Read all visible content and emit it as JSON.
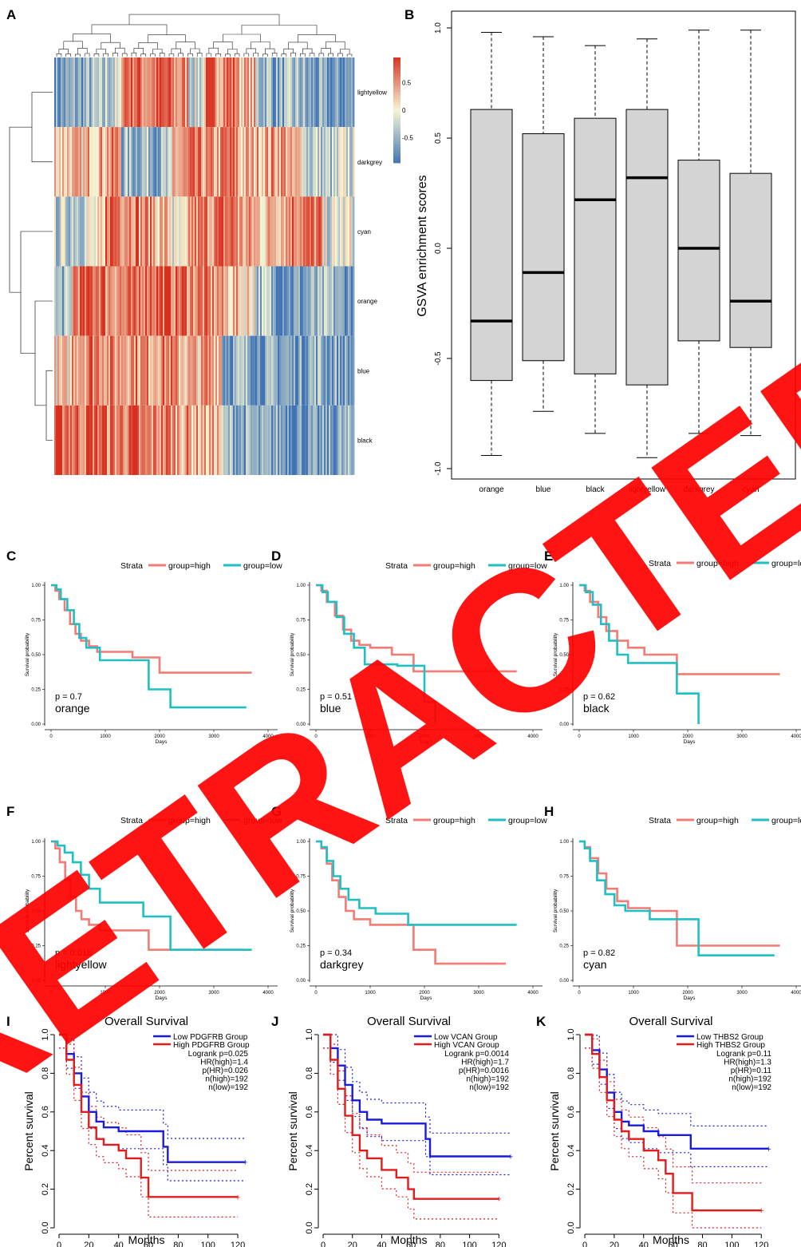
{
  "panel_labels": [
    "A",
    "B",
    "C",
    "D",
    "E",
    "F",
    "G",
    "H",
    "I",
    "J",
    "K"
  ],
  "watermark": "RETRACTED",
  "chart_data": [
    {
      "panel": "A",
      "type": "heatmap",
      "rows": [
        "lightyellow",
        "darkgrey",
        "cyan",
        "orange",
        "blue",
        "black"
      ],
      "colorbar": {
        "ticks": [
          0.5,
          0,
          -0.5
        ],
        "tick_labels": [
          "0.5",
          "0",
          "-0.5"
        ],
        "low": "#3f73b5",
        "mid": "#f6f6d4",
        "high": "#d7301f"
      },
      "row_profiles": [
        {
          "name": "lightyellow",
          "bands": [
            -0.7,
            -0.6,
            -0.5,
            -0.3,
            0.8,
            0.6,
            0.7,
            0.5,
            -0.2,
            0.6,
            0.7,
            0.3,
            -0.4,
            -0.6,
            -0.5,
            -0.7,
            -0.8,
            -0.7
          ]
        },
        {
          "name": "darkgrey",
          "bands": [
            0.3,
            0.2,
            0.4,
            0.5,
            -0.5,
            -0.4,
            -0.5,
            0.4,
            0.5,
            0.4,
            0.6,
            0.3,
            0.4,
            0.5,
            0.2,
            -0.3,
            -0.4,
            -0.2
          ]
        },
        {
          "name": "cyan",
          "bands": [
            -0.3,
            -0.2,
            -0.1,
            0.8,
            0.7,
            0.5,
            0.3,
            -0.2,
            0.5,
            0.6,
            0.7,
            0.4,
            0.3,
            0.5,
            0.7,
            0.6,
            -0.2,
            -0.1
          ]
        },
        {
          "name": "orange",
          "bands": [
            -0.5,
            0.7,
            0.8,
            0.6,
            0.5,
            0.8,
            0.8,
            0.7,
            0.6,
            0.5,
            0.3,
            0.2,
            -0.4,
            -0.6,
            -0.7,
            -0.6,
            -0.5,
            -0.7
          ]
        },
        {
          "name": "blue",
          "bands": [
            0.1,
            0.6,
            0.7,
            0.5,
            0.6,
            0.5,
            0.6,
            0.4,
            0.3,
            0.5,
            -0.6,
            -0.5,
            -0.7,
            -0.6,
            -0.7,
            -0.5,
            -0.6,
            -0.7
          ]
        },
        {
          "name": "black",
          "bands": [
            0.8,
            0.7,
            0.8,
            0.6,
            0.7,
            0.5,
            0.6,
            0.5,
            0.4,
            0.3,
            -0.5,
            -0.6,
            -0.7,
            -0.6,
            -0.7,
            -0.8,
            -0.7,
            -0.6
          ]
        }
      ]
    },
    {
      "panel": "B",
      "type": "box",
      "ylabel": "GSVA enrichment scores",
      "ylim": [
        -1.0,
        1.0
      ],
      "yticks": [
        1.0,
        0.5,
        0.0,
        -0.5,
        -1.0
      ],
      "ytick_labels": [
        "1.0",
        "0.5",
        "0.0",
        "-0.5",
        "-1.0"
      ],
      "categories": [
        "orange",
        "blue",
        "black",
        "lightyellow",
        "darkgrey",
        "cyan"
      ],
      "boxes": [
        {
          "min": -0.94,
          "q1": -0.6,
          "median": -0.33,
          "q3": 0.63,
          "max": 0.98
        },
        {
          "min": -0.74,
          "q1": -0.51,
          "median": -0.11,
          "q3": 0.52,
          "max": 0.96
        },
        {
          "min": -0.84,
          "q1": -0.57,
          "median": 0.22,
          "q3": 0.59,
          "max": 0.92
        },
        {
          "min": -0.95,
          "q1": -0.62,
          "median": 0.32,
          "q3": 0.63,
          "max": 0.95
        },
        {
          "min": -0.84,
          "q1": -0.42,
          "median": 0.0,
          "q3": 0.4,
          "max": 0.99
        },
        {
          "min": -0.85,
          "q1": -0.45,
          "median": -0.24,
          "q3": 0.34,
          "max": 0.99
        }
      ]
    },
    {
      "panel": "C",
      "type": "line",
      "subtype": "kaplan-meier",
      "legend_title": "Strata",
      "legend": [
        "group=high",
        "group=low"
      ],
      "xlabel": "Days",
      "ylabel": "Survival probability",
      "xticks": [
        0,
        1000,
        2000,
        3000,
        4000
      ],
      "yticks": [
        0,
        0.25,
        0.5,
        0.75,
        1.0
      ],
      "ytick_labels": [
        "0.00",
        "0.25",
        "0.50",
        "0.75",
        "1.00"
      ],
      "pvalue": "p = 0.7",
      "module": "orange",
      "series": [
        {
          "name": "group=high",
          "x": [
            0,
            80,
            150,
            250,
            350,
            450,
            550,
            700,
            850,
            1100,
            1500,
            2000,
            3700
          ],
          "y": [
            1.0,
            0.96,
            0.9,
            0.82,
            0.72,
            0.65,
            0.6,
            0.56,
            0.52,
            0.52,
            0.48,
            0.37,
            0.37
          ]
        },
        {
          "name": "group=low",
          "x": [
            0,
            100,
            180,
            300,
            420,
            520,
            650,
            900,
            1800,
            2200,
            3600
          ],
          "y": [
            1.0,
            0.97,
            0.9,
            0.82,
            0.72,
            0.62,
            0.55,
            0.46,
            0.25,
            0.12,
            0.12
          ]
        }
      ]
    },
    {
      "panel": "D",
      "type": "line",
      "subtype": "kaplan-meier",
      "legend_title": "Strata",
      "legend": [
        "group=high",
        "group=low"
      ],
      "xlabel": "Days",
      "ylabel": "Survival probability",
      "xticks": [
        0,
        1000,
        2000,
        3000,
        4000
      ],
      "yticks": [
        0,
        0.25,
        0.5,
        0.75,
        1.0
      ],
      "ytick_labels": [
        "0.00",
        "0.25",
        "0.50",
        "0.75",
        "1.00"
      ],
      "pvalue": "p = 0.51",
      "module": "blue",
      "series": [
        {
          "name": "group=high",
          "x": [
            0,
            100,
            200,
            350,
            500,
            650,
            800,
            1000,
            1400,
            1800,
            3700
          ],
          "y": [
            1.0,
            0.96,
            0.88,
            0.78,
            0.68,
            0.6,
            0.57,
            0.55,
            0.5,
            0.38,
            0.38
          ]
        },
        {
          "name": "group=low",
          "x": [
            0,
            120,
            220,
            380,
            520,
            700,
            900,
            1500,
            2000,
            2200
          ],
          "y": [
            1.0,
            0.95,
            0.88,
            0.77,
            0.65,
            0.55,
            0.43,
            0.42,
            0.16,
            0.0
          ]
        }
      ]
    },
    {
      "panel": "E",
      "type": "line",
      "subtype": "kaplan-meier",
      "legend_title": "Strata",
      "legend": [
        "group=high",
        "group=low"
      ],
      "xlabel": "Days",
      "ylabel": "Survival probability",
      "xticks": [
        0,
        1000,
        2000,
        3000,
        4000
      ],
      "yticks": [
        0,
        0.25,
        0.5,
        0.75,
        1.0
      ],
      "ytick_labels": [
        "0.00",
        "0.25",
        "0.50",
        "0.75",
        "1.00"
      ],
      "pvalue": "p = 0.62",
      "module": "black",
      "series": [
        {
          "name": "group=high",
          "x": [
            0,
            100,
            200,
            350,
            500,
            700,
            900,
            1200,
            1800,
            3700
          ],
          "y": [
            1.0,
            0.96,
            0.88,
            0.77,
            0.67,
            0.6,
            0.55,
            0.5,
            0.36,
            0.36
          ]
        },
        {
          "name": "group=low",
          "x": [
            0,
            120,
            250,
            400,
            550,
            700,
            900,
            1800,
            2200
          ],
          "y": [
            1.0,
            0.95,
            0.86,
            0.72,
            0.6,
            0.5,
            0.44,
            0.22,
            0.0
          ]
        }
      ]
    },
    {
      "panel": "F",
      "type": "line",
      "subtype": "kaplan-meier",
      "legend_title": "Strata",
      "legend": [
        "group=high",
        "group=low"
      ],
      "xlabel": "Days",
      "ylabel": "Survival probability",
      "xticks": [
        0,
        1000,
        2000,
        3000,
        4000
      ],
      "yticks": [
        0,
        0.25,
        0.5,
        0.75,
        1.0
      ],
      "ytick_labels": [
        "0.00",
        "0.25",
        "0.50",
        "0.75",
        "1.00"
      ],
      "pvalue": "p = 0.018",
      "module": "lightyellow",
      "series": [
        {
          "name": "group=high",
          "x": [
            0,
            80,
            160,
            260,
            360,
            460,
            560,
            700,
            900,
            1300,
            1800,
            2000,
            3500
          ],
          "y": [
            1.0,
            0.95,
            0.85,
            0.72,
            0.6,
            0.5,
            0.44,
            0.4,
            0.36,
            0.36,
            0.22,
            0.22,
            0.22
          ]
        },
        {
          "name": "group=low",
          "x": [
            0,
            120,
            250,
            400,
            550,
            700,
            900,
            1200,
            1700,
            2200,
            3700
          ],
          "y": [
            1.0,
            0.97,
            0.92,
            0.85,
            0.76,
            0.66,
            0.56,
            0.56,
            0.46,
            0.22,
            0.22
          ]
        }
      ]
    },
    {
      "panel": "G",
      "type": "line",
      "subtype": "kaplan-meier",
      "legend_title": "Strata",
      "legend": [
        "group=high",
        "group=low"
      ],
      "xlabel": "Days",
      "ylabel": "Survival probability",
      "xticks": [
        0,
        1000,
        2000,
        3000,
        4000
      ],
      "yticks": [
        0,
        0.25,
        0.5,
        0.75,
        1.0
      ],
      "ytick_labels": [
        "0.00",
        "0.25",
        "0.50",
        "0.75",
        "1.00"
      ],
      "pvalue": "p = 0.34",
      "module": "darkgrey",
      "series": [
        {
          "name": "group=high",
          "x": [
            0,
            100,
            200,
            300,
            420,
            550,
            700,
            1000,
            1800,
            2200,
            3500
          ],
          "y": [
            1.0,
            0.95,
            0.84,
            0.72,
            0.6,
            0.5,
            0.44,
            0.4,
            0.22,
            0.12,
            0.12
          ]
        },
        {
          "name": "group=low",
          "x": [
            0,
            100,
            200,
            320,
            450,
            600,
            800,
            1100,
            1700,
            3700
          ],
          "y": [
            1.0,
            0.96,
            0.86,
            0.75,
            0.66,
            0.58,
            0.52,
            0.48,
            0.4,
            0.4
          ]
        }
      ]
    },
    {
      "panel": "H",
      "type": "line",
      "subtype": "kaplan-meier",
      "legend_title": "Strata",
      "legend": [
        "group=high",
        "group=low"
      ],
      "xlabel": "Days",
      "ylabel": "Survival probability",
      "xticks": [
        0,
        1000,
        2000,
        3000,
        4000
      ],
      "yticks": [
        0,
        0.25,
        0.5,
        0.75,
        1.0
      ],
      "ytick_labels": [
        "0.00",
        "0.25",
        "0.50",
        "0.75",
        "1.00"
      ],
      "pvalue": "p = 0.82",
      "module": "cyan",
      "series": [
        {
          "name": "group=high",
          "x": [
            0,
            100,
            200,
            350,
            500,
            700,
            900,
            1300,
            1800,
            3700
          ],
          "y": [
            1.0,
            0.96,
            0.88,
            0.77,
            0.66,
            0.57,
            0.52,
            0.5,
            0.25,
            0.25
          ]
        },
        {
          "name": "group=low",
          "x": [
            0,
            100,
            200,
            330,
            480,
            650,
            850,
            1300,
            2200,
            3600
          ],
          "y": [
            1.0,
            0.95,
            0.86,
            0.72,
            0.62,
            0.54,
            0.5,
            0.44,
            0.18,
            0.18
          ]
        }
      ]
    },
    {
      "panel": "I",
      "type": "line",
      "subtype": "kaplan-meier",
      "title": "Overall Survival",
      "xlabel": "Months",
      "ylabel": "Percent survival",
      "xticks": [
        0,
        20,
        40,
        60,
        80,
        100,
        120
      ],
      "yticks": [
        0.0,
        0.2,
        0.4,
        0.6,
        0.8,
        1.0
      ],
      "ytick_labels": [
        "0.0",
        "0.2",
        "0.4",
        "0.6",
        "0.8",
        "1.0"
      ],
      "legend": [
        "Low PDGFRB Group",
        "High PDGFRB Group"
      ],
      "stats": [
        "Logrank p=0.025",
        "HR(high)=1.4",
        "p(HR)=0.026",
        "n(high)=192",
        "n(low)=192"
      ],
      "series": [
        {
          "name": "Low PDGFRB Group",
          "x": [
            0,
            5,
            10,
            15,
            20,
            25,
            30,
            40,
            50,
            70,
            73,
            125
          ],
          "y": [
            1.0,
            0.9,
            0.8,
            0.68,
            0.6,
            0.55,
            0.52,
            0.5,
            0.5,
            0.42,
            0.34,
            0.34
          ]
        },
        {
          "name": "High PDGFRB Group",
          "x": [
            0,
            5,
            10,
            15,
            20,
            25,
            30,
            40,
            45,
            55,
            60,
            120
          ],
          "y": [
            1.0,
            0.87,
            0.74,
            0.6,
            0.52,
            0.46,
            0.43,
            0.4,
            0.36,
            0.26,
            0.16,
            0.16
          ]
        }
      ]
    },
    {
      "panel": "J",
      "type": "line",
      "subtype": "kaplan-meier",
      "title": "Overall Survival",
      "xlabel": "Months",
      "ylabel": "Percent survival",
      "xticks": [
        0,
        20,
        40,
        60,
        80,
        100,
        120
      ],
      "yticks": [
        0.0,
        0.2,
        0.4,
        0.6,
        0.8,
        1.0
      ],
      "ytick_labels": [
        "0.0",
        "0.2",
        "0.4",
        "0.6",
        "0.8",
        "1.0"
      ],
      "legend": [
        "Low VCAN Group",
        "High VCAN Group"
      ],
      "stats": [
        "Logrank p=0.0014",
        "HR(high)=1.7",
        "p(HR)=0.0016",
        "n(high)=192",
        "n(low)=192"
      ],
      "series": [
        {
          "name": "Low VCAN Group",
          "x": [
            0,
            5,
            10,
            15,
            20,
            25,
            30,
            40,
            50,
            70,
            73,
            128
          ],
          "y": [
            1.0,
            0.93,
            0.84,
            0.74,
            0.66,
            0.6,
            0.56,
            0.54,
            0.54,
            0.46,
            0.37,
            0.37
          ]
        },
        {
          "name": "High VCAN Group",
          "x": [
            0,
            5,
            10,
            15,
            20,
            25,
            30,
            40,
            50,
            58,
            62,
            120
          ],
          "y": [
            1.0,
            0.87,
            0.72,
            0.58,
            0.48,
            0.4,
            0.36,
            0.3,
            0.26,
            0.2,
            0.15,
            0.15
          ]
        }
      ]
    },
    {
      "panel": "K",
      "type": "line",
      "subtype": "kaplan-meier",
      "title": "Overall Survival",
      "xlabel": "Months",
      "ylabel": "Percent survival",
      "xticks": [
        0,
        20,
        40,
        60,
        80,
        100,
        120
      ],
      "yticks": [
        0.0,
        0.2,
        0.4,
        0.6,
        0.8,
        1.0
      ],
      "ytick_labels": [
        "0.0",
        "0.2",
        "0.4",
        "0.6",
        "0.8",
        "1.0"
      ],
      "legend": [
        "Low THBS2 Group",
        "High THBS2 Group"
      ],
      "stats": [
        "Logrank p=0.11",
        "HR(high)=1.3",
        "p(HR)=0.11",
        "n(high)=192",
        "n(low)=192"
      ],
      "series": [
        {
          "name": "Low THBS2 Group",
          "x": [
            0,
            5,
            10,
            15,
            20,
            25,
            30,
            40,
            50,
            68,
            72,
            125
          ],
          "y": [
            1.0,
            0.92,
            0.82,
            0.7,
            0.6,
            0.55,
            0.53,
            0.5,
            0.48,
            0.48,
            0.41,
            0.41
          ]
        },
        {
          "name": "High THBS2 Group",
          "x": [
            0,
            5,
            10,
            15,
            20,
            25,
            30,
            40,
            50,
            55,
            60,
            73,
            120
          ],
          "y": [
            1.0,
            0.9,
            0.78,
            0.66,
            0.56,
            0.5,
            0.46,
            0.4,
            0.35,
            0.28,
            0.18,
            0.09,
            0.09
          ]
        }
      ]
    }
  ],
  "colors": {
    "km_high": "#f27c75",
    "km_low": "#1fbfc4",
    "gepia_low": "#1b1bdb",
    "gepia_high": "#e41b1b",
    "box_fill": "#d4d4d4",
    "watermark": "#ff0000"
  }
}
